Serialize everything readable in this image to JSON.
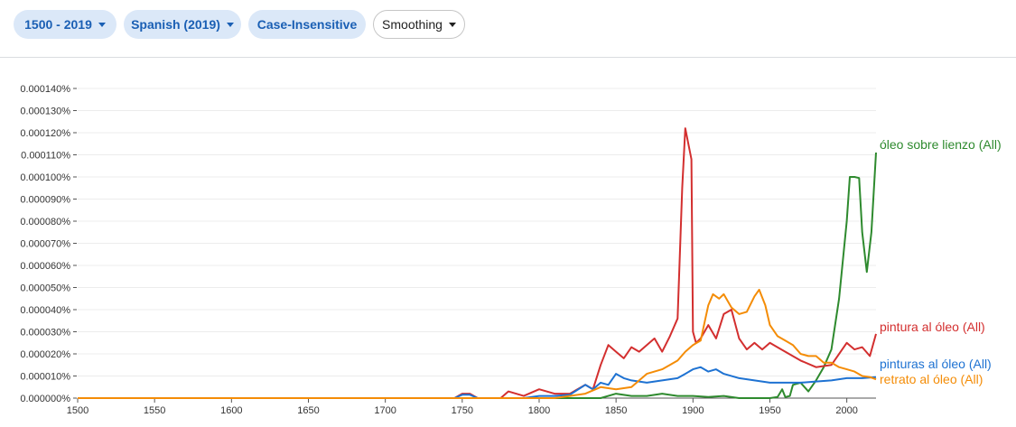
{
  "toolbar": {
    "year_range": "1500 - 2019",
    "corpus": "Spanish (2019)",
    "case": "Case-Insensitive",
    "smoothing": "Smoothing"
  },
  "chart_data": {
    "type": "line",
    "xlim": [
      1500,
      2019
    ],
    "ylim": [
      0,
      0.00014
    ],
    "x_ticks": [
      "1500",
      "1550",
      "1600",
      "1650",
      "1700",
      "1750",
      "1800",
      "1850",
      "1900",
      "1950",
      "2000"
    ],
    "y_ticks": [
      "0.000000%",
      "0.000010%",
      "0.000020%",
      "0.000030%",
      "0.000040%",
      "0.000050%",
      "0.000060%",
      "0.000070%",
      "0.000080%",
      "0.000090%",
      "0.000100%",
      "0.000110%",
      "0.000120%",
      "0.000130%",
      "0.000140%"
    ],
    "grid": true,
    "series": [
      {
        "name": "óleo sobre lienzo (All)",
        "color": "#2e8a2e",
        "x": [
          1500,
          1840,
          1850,
          1860,
          1870,
          1880,
          1890,
          1900,
          1910,
          1920,
          1930,
          1940,
          1950,
          1955,
          1958,
          1960,
          1963,
          1965,
          1970,
          1975,
          1980,
          1985,
          1990,
          1995,
          2000,
          2002,
          2005,
          2008,
          2010,
          2013,
          2016,
          2019
        ],
        "y": [
          0,
          0,
          2e-06,
          1e-06,
          1e-06,
          2e-06,
          1e-06,
          1e-06,
          5e-07,
          1e-06,
          0,
          0,
          0,
          5e-07,
          4e-06,
          5e-07,
          1e-06,
          6e-06,
          7e-06,
          3e-06,
          8e-06,
          1.4e-05,
          2.2e-05,
          4.5e-05,
          8e-05,
          0.0001,
          0.0001,
          9.95e-05,
          7.5e-05,
          5.7e-05,
          7.5e-05,
          0.000111
        ]
      },
      {
        "name": "pintura al óleo (All)",
        "color": "#d32f2f",
        "x": [
          1500,
          1745,
          1750,
          1755,
          1760,
          1775,
          1780,
          1790,
          1800,
          1810,
          1820,
          1830,
          1835,
          1840,
          1845,
          1850,
          1855,
          1860,
          1865,
          1870,
          1875,
          1880,
          1885,
          1890,
          1893,
          1895,
          1897,
          1899,
          1900,
          1902,
          1905,
          1910,
          1915,
          1920,
          1925,
          1930,
          1935,
          1940,
          1945,
          1950,
          1960,
          1970,
          1980,
          1990,
          2000,
          2005,
          2010,
          2015,
          2019
        ],
        "y": [
          0,
          0,
          2e-06,
          2e-06,
          0,
          0,
          3e-06,
          1e-06,
          4e-06,
          2e-06,
          2e-06,
          6e-06,
          4e-06,
          1.5e-05,
          2.4e-05,
          2.1e-05,
          1.8e-05,
          2.3e-05,
          2.1e-05,
          2.4e-05,
          2.7e-05,
          2.1e-05,
          2.8e-05,
          3.6e-05,
          9.5e-05,
          0.000122,
          0.000115,
          0.000108,
          3e-05,
          2.5e-05,
          2.7e-05,
          3.3e-05,
          2.7e-05,
          3.8e-05,
          4e-05,
          2.7e-05,
          2.2e-05,
          2.5e-05,
          2.2e-05,
          2.5e-05,
          2.1e-05,
          1.7e-05,
          1.4e-05,
          1.5e-05,
          2.5e-05,
          2.2e-05,
          2.3e-05,
          1.9e-05,
          2.9e-05
        ]
      },
      {
        "name": "pinturas al óleo (All)",
        "color": "#1e72d2",
        "x": [
          1500,
          1745,
          1750,
          1755,
          1760,
          1780,
          1790,
          1800,
          1810,
          1820,
          1830,
          1835,
          1840,
          1845,
          1850,
          1855,
          1860,
          1870,
          1880,
          1890,
          1895,
          1900,
          1905,
          1910,
          1915,
          1920,
          1930,
          1940,
          1950,
          1960,
          1970,
          1980,
          1990,
          2000,
          2010,
          2019
        ],
        "y": [
          0,
          0,
          1.5e-06,
          1.5e-06,
          0,
          0,
          0,
          1e-06,
          1e-06,
          1.5e-06,
          6e-06,
          4e-06,
          7e-06,
          6e-06,
          1.1e-05,
          9e-06,
          8e-06,
          7e-06,
          8e-06,
          9e-06,
          1.1e-05,
          1.3e-05,
          1.4e-05,
          1.2e-05,
          1.3e-05,
          1.1e-05,
          9e-06,
          8e-06,
          7e-06,
          7e-06,
          7e-06,
          7.5e-06,
          8e-06,
          9e-06,
          9e-06,
          9.5e-06
        ]
      },
      {
        "name": "retrato al óleo (All)",
        "color": "#f48c06",
        "x": [
          1500,
          1810,
          1820,
          1830,
          1840,
          1850,
          1860,
          1870,
          1875,
          1880,
          1885,
          1890,
          1895,
          1900,
          1905,
          1910,
          1913,
          1917,
          1920,
          1925,
          1930,
          1935,
          1940,
          1943,
          1947,
          1950,
          1955,
          1960,
          1965,
          1970,
          1975,
          1980,
          1985,
          1990,
          1995,
          2000,
          2005,
          2010,
          2015,
          2019
        ],
        "y": [
          0,
          0,
          1e-06,
          2e-06,
          5e-06,
          4e-06,
          5e-06,
          1.1e-05,
          1.2e-05,
          1.3e-05,
          1.5e-05,
          1.7e-05,
          2.1e-05,
          2.4e-05,
          2.6e-05,
          4.2e-05,
          4.7e-05,
          4.5e-05,
          4.7e-05,
          4.1e-05,
          3.8e-05,
          3.9e-05,
          4.6e-05,
          4.9e-05,
          4.2e-05,
          3.3e-05,
          2.8e-05,
          2.6e-05,
          2.4e-05,
          2e-05,
          1.9e-05,
          1.9e-05,
          1.6e-05,
          1.6e-05,
          1.4e-05,
          1.3e-05,
          1.2e-05,
          1e-05,
          9.5e-06,
          8.5e-06
        ]
      }
    ]
  }
}
